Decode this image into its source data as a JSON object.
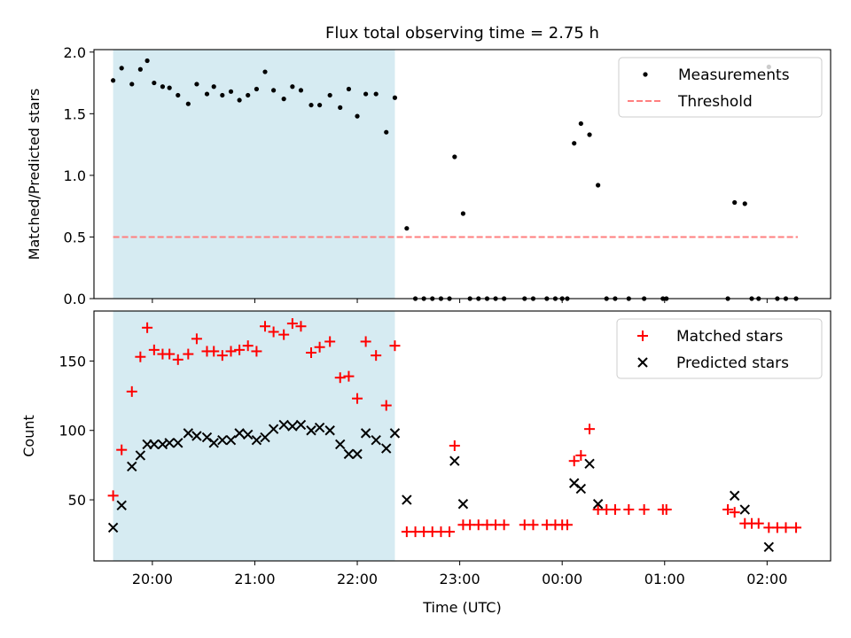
{
  "title": "Flux total observing time = 2.75 h",
  "chart_data": [
    {
      "type": "scatter",
      "ylabel": "Matched/Predicted stars",
      "xlabel": "",
      "xlim": [
        19.43,
        26.62
      ],
      "ylim": [
        0,
        2.02
      ],
      "x_ticks": [
        20,
        21,
        22,
        23,
        24,
        25,
        26
      ],
      "y_ticks": [
        0.0,
        0.5,
        1.0,
        1.5,
        2.0
      ],
      "y_tick_labels": [
        "0.0",
        "0.5",
        "1.0",
        "1.5",
        "2.0"
      ],
      "x_tick_labels_visible": false,
      "grid": false,
      "legend_position": "top-right",
      "shaded_interval": {
        "x": [
          19.617,
          22.367
        ],
        "color": "#add8e6"
      },
      "series": [
        {
          "name": "Measurements",
          "marker": "dot",
          "color": "#000000",
          "x": [
            19.617,
            19.7,
            19.8,
            19.883,
            19.95,
            20.017,
            20.1,
            20.167,
            20.25,
            20.35,
            20.433,
            20.533,
            20.6,
            20.683,
            20.767,
            20.85,
            20.933,
            21.017,
            21.1,
            21.183,
            21.283,
            21.367,
            21.45,
            21.55,
            21.633,
            21.733,
            21.833,
            21.917,
            22.0,
            22.083,
            22.183,
            22.283,
            22.367,
            22.483,
            22.567,
            22.65,
            22.733,
            22.817,
            22.9,
            22.95,
            23.033,
            23.1,
            23.183,
            23.267,
            23.35,
            23.433,
            23.633,
            23.717,
            23.85,
            23.933,
            24.0,
            24.05,
            24.117,
            24.183,
            24.267,
            24.35,
            24.433,
            24.517,
            24.65,
            24.8,
            24.983,
            25.017,
            25.617,
            25.683,
            25.783,
            25.85,
            25.917,
            26.017,
            26.1,
            26.183,
            26.283
          ],
          "y": [
            1.77,
            1.87,
            1.74,
            1.86,
            1.93,
            1.75,
            1.72,
            1.71,
            1.65,
            1.58,
            1.74,
            1.66,
            1.72,
            1.65,
            1.68,
            1.61,
            1.65,
            1.7,
            1.84,
            1.69,
            1.62,
            1.72,
            1.69,
            1.57,
            1.57,
            1.65,
            1.55,
            1.7,
            1.48,
            1.66,
            1.66,
            1.35,
            1.63,
            0.57,
            0.0,
            0.0,
            0.0,
            0.0,
            0.0,
            1.15,
            0.69,
            0.0,
            0.0,
            0.0,
            0.0,
            0.0,
            0.0,
            0.0,
            0.0,
            0.0,
            0.0,
            0.0,
            1.26,
            1.42,
            1.33,
            0.92,
            0.0,
            0.0,
            0.0,
            0.0,
            0.0,
            0.0,
            0.0,
            0.78,
            0.77,
            0.0,
            0.0,
            1.88,
            0.0,
            0.0,
            0.0
          ]
        },
        {
          "name": "Threshold",
          "marker": "dashed-line",
          "color": "#ff7f7f",
          "x": [
            19.617,
            26.3
          ],
          "y": [
            0.5,
            0.5
          ]
        }
      ]
    },
    {
      "type": "scatter",
      "ylabel": "Count",
      "xlabel": "Time (UTC)",
      "xlim": [
        19.43,
        26.62
      ],
      "ylim": [
        6,
        186
      ],
      "x_ticks": [
        20,
        21,
        22,
        23,
        24,
        25,
        26
      ],
      "x_tick_labels": [
        "20:00",
        "21:00",
        "22:00",
        "23:00",
        "00:00",
        "01:00",
        "02:00"
      ],
      "y_ticks": [
        50,
        100,
        150
      ],
      "y_tick_labels": [
        "50",
        "100",
        "150"
      ],
      "grid": false,
      "legend_position": "top-right",
      "shaded_interval": {
        "x": [
          19.617,
          22.367
        ],
        "color": "#add8e6"
      },
      "series": [
        {
          "name": "Matched stars",
          "marker": "plus",
          "color": "#ff0000",
          "x": [
            19.617,
            19.7,
            19.8,
            19.883,
            19.95,
            20.017,
            20.1,
            20.167,
            20.25,
            20.35,
            20.433,
            20.533,
            20.6,
            20.683,
            20.767,
            20.85,
            20.933,
            21.017,
            21.1,
            21.183,
            21.283,
            21.367,
            21.45,
            21.55,
            21.633,
            21.733,
            21.833,
            21.917,
            22.0,
            22.083,
            22.183,
            22.283,
            22.367,
            22.483,
            22.567,
            22.65,
            22.733,
            22.817,
            22.9,
            22.95,
            23.033,
            23.1,
            23.183,
            23.267,
            23.35,
            23.433,
            23.633,
            23.717,
            23.85,
            23.933,
            24.0,
            24.05,
            24.117,
            24.183,
            24.267,
            24.35,
            24.433,
            24.517,
            24.65,
            24.8,
            24.983,
            25.017,
            25.617,
            25.683,
            25.783,
            25.85,
            25.917,
            26.017,
            26.1,
            26.183,
            26.283
          ],
          "y": [
            53,
            86,
            128,
            153,
            174,
            158,
            155,
            155,
            151,
            155,
            166,
            157,
            157,
            154,
            157,
            158,
            161,
            157,
            175,
            171,
            169,
            177,
            175,
            156,
            160,
            164,
            138,
            139,
            123,
            164,
            154,
            118,
            161,
            27,
            27,
            27,
            27,
            27,
            27,
            89,
            32,
            32,
            32,
            32,
            32,
            32,
            32,
            32,
            32,
            32,
            32,
            32,
            78,
            82,
            101,
            43,
            43,
            43,
            43,
            43,
            43,
            43,
            43,
            41,
            33,
            33,
            33,
            30,
            30,
            30,
            30
          ]
        },
        {
          "name": "Predicted stars",
          "marker": "x",
          "color": "#000000",
          "x": [
            19.617,
            19.7,
            19.8,
            19.883,
            19.95,
            20.017,
            20.1,
            20.167,
            20.25,
            20.35,
            20.433,
            20.533,
            20.6,
            20.683,
            20.767,
            20.85,
            20.933,
            21.017,
            21.1,
            21.183,
            21.283,
            21.367,
            21.45,
            21.55,
            21.633,
            21.733,
            21.833,
            21.917,
            22.0,
            22.083,
            22.183,
            22.283,
            22.367,
            22.483,
            22.95,
            23.033,
            24.117,
            24.183,
            24.267,
            24.35,
            25.683,
            25.783,
            26.017
          ],
          "y": [
            30,
            46,
            74,
            82,
            90,
            90,
            90,
            91,
            91,
            98,
            96,
            95,
            91,
            93,
            93,
            98,
            97,
            93,
            95,
            101,
            104,
            103,
            104,
            100,
            102,
            100,
            90,
            83,
            83,
            98,
            93,
            87,
            98,
            50,
            78,
            47,
            62,
            58,
            76,
            47,
            53,
            43,
            16
          ]
        }
      ]
    }
  ]
}
